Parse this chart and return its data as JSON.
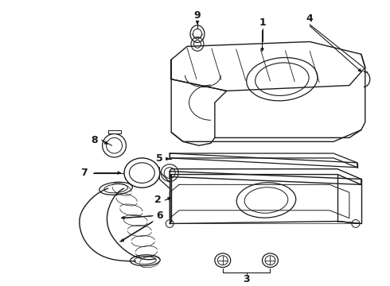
{
  "bg_color": "#ffffff",
  "line_color": "#1a1a1a",
  "figsize": [
    4.9,
    3.6
  ],
  "dpi": 100,
  "lw_main": 1.0,
  "lw_detail": 0.6,
  "label_fs": 9
}
